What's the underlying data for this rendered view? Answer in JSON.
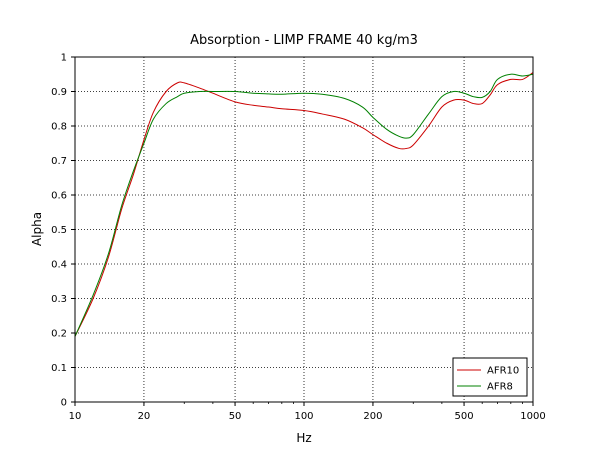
{
  "chart_data": {
    "type": "line",
    "title": "Absorption - LIMP FRAME 40 kg/m3",
    "xlabel": "Hz",
    "ylabel": "Alpha",
    "xscale": "log",
    "xlim": [
      10,
      1000
    ],
    "ylim": [
      0,
      1
    ],
    "xticks": [
      10,
      20,
      50,
      100,
      200,
      500,
      1000
    ],
    "xtick_labels": [
      "10",
      "20",
      "50",
      "100",
      "200",
      "500",
      "1000"
    ],
    "yticks": [
      0,
      0.1,
      0.2,
      0.3,
      0.4,
      0.5,
      0.6,
      0.7,
      0.8,
      0.9,
      1
    ],
    "ytick_labels": [
      "0",
      "0.1",
      "0.2",
      "0.3",
      "0.4",
      "0.5",
      "0.6",
      "0.7",
      "0.8",
      "0.9",
      "1"
    ],
    "grid": true,
    "legend_position": "bottom-right",
    "x": [
      10,
      12,
      14,
      16,
      18,
      20,
      22,
      25,
      28,
      30,
      35,
      40,
      50,
      60,
      70,
      80,
      100,
      120,
      150,
      180,
      200,
      230,
      260,
      280,
      300,
      350,
      400,
      450,
      500,
      550,
      600,
      650,
      700,
      800,
      900,
      1000
    ],
    "series": [
      {
        "name": "AFR10",
        "color": "#cc0000",
        "values": [
          0.19,
          0.3,
          0.42,
          0.56,
          0.66,
          0.76,
          0.84,
          0.9,
          0.925,
          0.925,
          0.91,
          0.895,
          0.87,
          0.86,
          0.855,
          0.85,
          0.845,
          0.835,
          0.82,
          0.795,
          0.775,
          0.75,
          0.735,
          0.735,
          0.745,
          0.8,
          0.855,
          0.875,
          0.875,
          0.865,
          0.865,
          0.89,
          0.92,
          0.935,
          0.935,
          0.955
        ]
      },
      {
        "name": "AFR8",
        "color": "#008000",
        "values": [
          0.19,
          0.31,
          0.43,
          0.57,
          0.67,
          0.75,
          0.82,
          0.865,
          0.885,
          0.895,
          0.9,
          0.9,
          0.9,
          0.895,
          0.893,
          0.892,
          0.895,
          0.892,
          0.88,
          0.855,
          0.825,
          0.79,
          0.77,
          0.765,
          0.775,
          0.835,
          0.885,
          0.9,
          0.895,
          0.885,
          0.883,
          0.9,
          0.935,
          0.95,
          0.945,
          0.95
        ]
      }
    ]
  }
}
